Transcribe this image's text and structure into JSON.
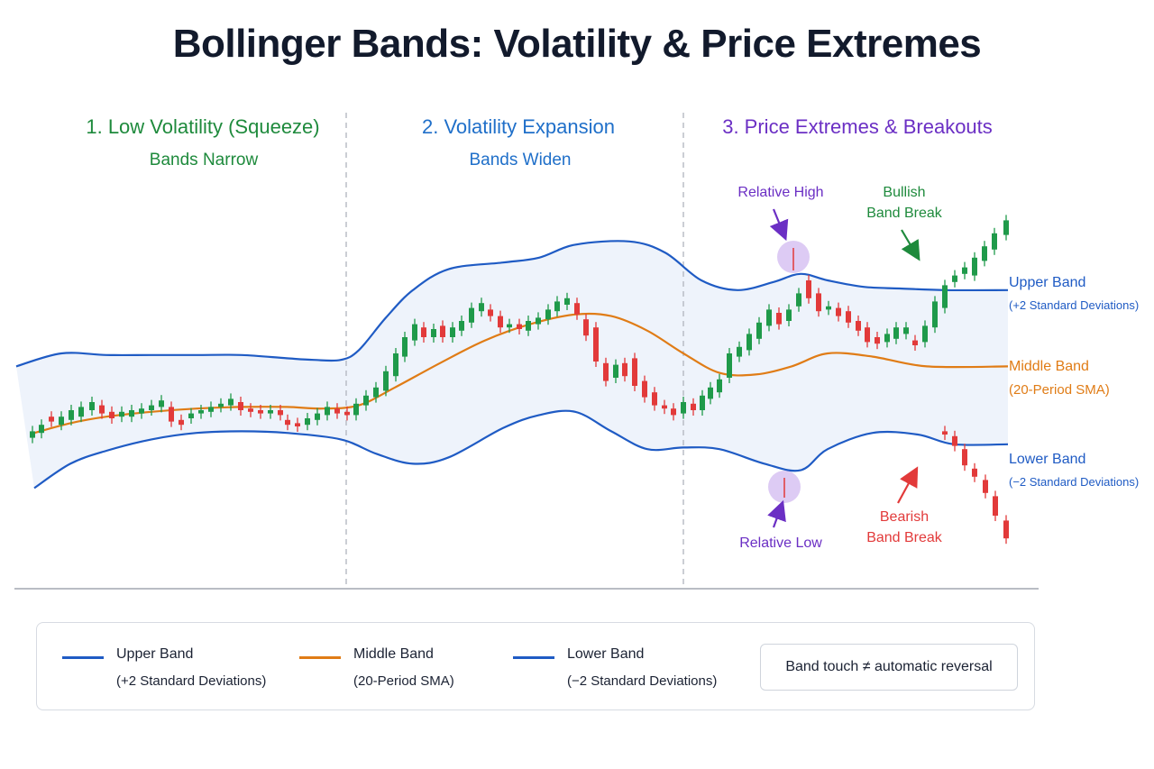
{
  "title": "Bollinger Bands: Volatility & Price Extremes",
  "colors": {
    "upper": "#1f5bc4",
    "middle": "#e07c16",
    "lower": "#1f5bc4",
    "bull": "#1f9a4a",
    "bear": "#e23a3a",
    "phase1": "#1e8a3c",
    "phase2": "#1f6fc9",
    "phase3": "#6b2fc4",
    "fill": "#eef3fb"
  },
  "phases": [
    {
      "title": "1. Low Volatility (Squeeze)",
      "subtitle": "Bands Narrow"
    },
    {
      "title": "2. Volatility Expansion",
      "subtitle": "Bands Widen"
    },
    {
      "title": "3. Price Extremes & Breakouts",
      "subtitle": ""
    }
  ],
  "annotations": {
    "relative_high": "Relative High",
    "relative_low": "Relative Low",
    "bullish_line1": "Bullish",
    "bullish_line2": "Band Break",
    "bearish_line1": "Bearish",
    "bearish_line2": "Band Break"
  },
  "band_labels": {
    "upper": {
      "name": "Upper Band",
      "desc": "(+2 Standard Deviations)"
    },
    "middle": {
      "name": "Middle Band",
      "desc": "(20-Period SMA)"
    },
    "lower": {
      "name": "Lower Band",
      "desc": "(−2 Standard Deviations)"
    }
  },
  "legend": [
    {
      "name": "Upper Band",
      "desc": "(+2 Standard Deviations)",
      "color": "#1f5bc4"
    },
    {
      "name": "Middle Band",
      "desc": "(20-Period SMA)",
      "color": "#e07c16"
    },
    {
      "name": "Lower Band",
      "desc": "(−2 Standard Deviations)",
      "color": "#1f5bc4"
    }
  ],
  "note": "Band touch ≠ automatic reversal",
  "chart_data": {
    "type": "candlestick",
    "series": [
      {
        "name": "Upper Band",
        "values": [
          {
            "x": 0,
            "y": 62
          },
          {
            "x": 50,
            "y": 70
          },
          {
            "x": 100,
            "y": 69
          },
          {
            "x": 150,
            "y": 69
          },
          {
            "x": 200,
            "y": 69
          },
          {
            "x": 250,
            "y": 69
          },
          {
            "x": 300,
            "y": 67
          },
          {
            "x": 330,
            "y": 66
          },
          {
            "x": 360,
            "y": 66
          },
          {
            "x": 380,
            "y": 72
          },
          {
            "x": 410,
            "y": 92
          },
          {
            "x": 440,
            "y": 109
          },
          {
            "x": 480,
            "y": 122
          },
          {
            "x": 540,
            "y": 126
          },
          {
            "x": 580,
            "y": 129
          },
          {
            "x": 620,
            "y": 137
          },
          {
            "x": 680,
            "y": 139
          },
          {
            "x": 720,
            "y": 132
          },
          {
            "x": 760,
            "y": 115
          },
          {
            "x": 800,
            "y": 109
          },
          {
            "x": 840,
            "y": 114
          },
          {
            "x": 870,
            "y": 119
          },
          {
            "x": 900,
            "y": 115
          },
          {
            "x": 940,
            "y": 111
          },
          {
            "x": 980,
            "y": 110
          },
          {
            "x": 1030,
            "y": 109
          },
          {
            "x": 1100,
            "y": 109
          }
        ]
      },
      {
        "name": "Middle Band",
        "values": [
          {
            "x": 20,
            "y": 21
          },
          {
            "x": 60,
            "y": 27
          },
          {
            "x": 100,
            "y": 31
          },
          {
            "x": 150,
            "y": 34
          },
          {
            "x": 200,
            "y": 36
          },
          {
            "x": 250,
            "y": 37
          },
          {
            "x": 300,
            "y": 37
          },
          {
            "x": 340,
            "y": 36
          },
          {
            "x": 380,
            "y": 38
          },
          {
            "x": 420,
            "y": 49
          },
          {
            "x": 470,
            "y": 64
          },
          {
            "x": 520,
            "y": 78
          },
          {
            "x": 570,
            "y": 88
          },
          {
            "x": 620,
            "y": 94
          },
          {
            "x": 660,
            "y": 93
          },
          {
            "x": 700,
            "y": 84
          },
          {
            "x": 740,
            "y": 70
          },
          {
            "x": 780,
            "y": 58
          },
          {
            "x": 820,
            "y": 57
          },
          {
            "x": 860,
            "y": 62
          },
          {
            "x": 900,
            "y": 70
          },
          {
            "x": 950,
            "y": 68
          },
          {
            "x": 1010,
            "y": 62
          },
          {
            "x": 1100,
            "y": 62
          }
        ]
      },
      {
        "name": "Lower Band",
        "values": [
          {
            "x": 20,
            "y": -13
          },
          {
            "x": 60,
            "y": 2
          },
          {
            "x": 100,
            "y": 10
          },
          {
            "x": 150,
            "y": 17
          },
          {
            "x": 200,
            "y": 21
          },
          {
            "x": 250,
            "y": 22
          },
          {
            "x": 300,
            "y": 21
          },
          {
            "x": 360,
            "y": 17
          },
          {
            "x": 400,
            "y": 8
          },
          {
            "x": 440,
            "y": 2
          },
          {
            "x": 480,
            "y": 6
          },
          {
            "x": 540,
            "y": 24
          },
          {
            "x": 580,
            "y": 32
          },
          {
            "x": 620,
            "y": 34
          },
          {
            "x": 660,
            "y": 22
          },
          {
            "x": 700,
            "y": 11
          },
          {
            "x": 740,
            "y": 12
          },
          {
            "x": 780,
            "y": 11
          },
          {
            "x": 830,
            "y": 2
          },
          {
            "x": 870,
            "y": -2
          },
          {
            "x": 900,
            "y": 11
          },
          {
            "x": 950,
            "y": 21
          },
          {
            "x": 1000,
            "y": 20
          },
          {
            "x": 1040,
            "y": 14
          },
          {
            "x": 1100,
            "y": 14
          }
        ]
      }
    ],
    "candles": [
      {
        "x": 18,
        "o": 18,
        "c": 22
      },
      {
        "x": 28,
        "o": 21,
        "c": 26
      },
      {
        "x": 39,
        "o": 31,
        "c": 28
      },
      {
        "x": 50,
        "o": 26,
        "c": 31
      },
      {
        "x": 61,
        "o": 29,
        "c": 35
      },
      {
        "x": 72,
        "o": 31,
        "c": 37
      },
      {
        "x": 84,
        "o": 35,
        "c": 40
      },
      {
        "x": 95,
        "o": 38,
        "c": 33
      },
      {
        "x": 106,
        "o": 34,
        "c": 30
      },
      {
        "x": 117,
        "o": 31,
        "c": 34
      },
      {
        "x": 128,
        "o": 31,
        "c": 35
      },
      {
        "x": 139,
        "o": 33,
        "c": 36
      },
      {
        "x": 150,
        "o": 35,
        "c": 38
      },
      {
        "x": 161,
        "o": 37,
        "c": 41
      },
      {
        "x": 172,
        "o": 37,
        "c": 28
      },
      {
        "x": 183,
        "o": 29,
        "c": 26
      },
      {
        "x": 194,
        "o": 30,
        "c": 33
      },
      {
        "x": 205,
        "o": 33,
        "c": 35
      },
      {
        "x": 216,
        "o": 34,
        "c": 37
      },
      {
        "x": 227,
        "o": 37,
        "c": 39
      },
      {
        "x": 238,
        "o": 38,
        "c": 42
      },
      {
        "x": 249,
        "o": 40,
        "c": 35
      },
      {
        "x": 260,
        "o": 36,
        "c": 34
      },
      {
        "x": 271,
        "o": 35,
        "c": 33
      },
      {
        "x": 282,
        "o": 33,
        "c": 35
      },
      {
        "x": 293,
        "o": 35,
        "c": 32
      },
      {
        "x": 301,
        "o": 29,
        "c": 26
      },
      {
        "x": 312,
        "o": 27,
        "c": 25
      },
      {
        "x": 323,
        "o": 26,
        "c": 30
      },
      {
        "x": 334,
        "o": 29,
        "c": 33
      },
      {
        "x": 345,
        "o": 32,
        "c": 37
      },
      {
        "x": 356,
        "o": 36,
        "c": 33
      },
      {
        "x": 367,
        "o": 34,
        "c": 32
      },
      {
        "x": 377,
        "o": 32,
        "c": 39
      },
      {
        "x": 388,
        "o": 38,
        "c": 44
      },
      {
        "x": 399,
        "o": 43,
        "c": 49
      },
      {
        "x": 410,
        "o": 47,
        "c": 59
      },
      {
        "x": 421,
        "o": 56,
        "c": 70
      },
      {
        "x": 431,
        "o": 68,
        "c": 80
      },
      {
        "x": 442,
        "o": 78,
        "c": 88
      },
      {
        "x": 452,
        "o": 86,
        "c": 80
      },
      {
        "x": 463,
        "o": 80,
        "c": 85
      },
      {
        "x": 473,
        "o": 87,
        "c": 80
      },
      {
        "x": 484,
        "o": 80,
        "c": 86
      },
      {
        "x": 494,
        "o": 84,
        "c": 90
      },
      {
        "x": 505,
        "o": 89,
        "c": 98
      },
      {
        "x": 516,
        "o": 96,
        "c": 101
      },
      {
        "x": 526,
        "o": 97,
        "c": 93
      },
      {
        "x": 537,
        "o": 93,
        "c": 86
      },
      {
        "x": 547,
        "o": 86,
        "c": 88
      },
      {
        "x": 558,
        "o": 88,
        "c": 85
      },
      {
        "x": 568,
        "o": 84,
        "c": 90
      },
      {
        "x": 579,
        "o": 88,
        "c": 92
      },
      {
        "x": 590,
        "o": 91,
        "c": 97
      },
      {
        "x": 600,
        "o": 96,
        "c": 102
      },
      {
        "x": 611,
        "o": 100,
        "c": 104
      },
      {
        "x": 622,
        "o": 101,
        "c": 94
      },
      {
        "x": 632,
        "o": 91,
        "c": 81
      },
      {
        "x": 643,
        "o": 86,
        "c": 65
      },
      {
        "x": 654,
        "o": 64,
        "c": 53
      },
      {
        "x": 665,
        "o": 55,
        "c": 63
      },
      {
        "x": 675,
        "o": 64,
        "c": 56
      },
      {
        "x": 686,
        "o": 67,
        "c": 50
      },
      {
        "x": 697,
        "o": 53,
        "c": 43
      },
      {
        "x": 708,
        "o": 46,
        "c": 38
      },
      {
        "x": 719,
        "o": 38,
        "c": 36
      },
      {
        "x": 729,
        "o": 36,
        "c": 32
      },
      {
        "x": 740,
        "o": 33,
        "c": 40
      },
      {
        "x": 751,
        "o": 39,
        "c": 35
      },
      {
        "x": 761,
        "o": 35,
        "c": 44
      },
      {
        "x": 770,
        "o": 42,
        "c": 49
      },
      {
        "x": 780,
        "o": 46,
        "c": 54
      },
      {
        "x": 791,
        "o": 55,
        "c": 70
      },
      {
        "x": 802,
        "o": 68,
        "c": 74
      },
      {
        "x": 813,
        "o": 72,
        "c": 82
      },
      {
        "x": 824,
        "o": 79,
        "c": 89
      },
      {
        "x": 835,
        "o": 87,
        "c": 97
      },
      {
        "x": 846,
        "o": 95,
        "c": 88
      },
      {
        "x": 857,
        "o": 90,
        "c": 97
      },
      {
        "x": 868,
        "o": 99,
        "c": 107
      },
      {
        "x": 879,
        "o": 115,
        "c": 104
      },
      {
        "x": 890,
        "o": 107,
        "c": 96
      },
      {
        "x": 901,
        "o": 97,
        "c": 99
      },
      {
        "x": 912,
        "o": 98,
        "c": 93
      },
      {
        "x": 923,
        "o": 96,
        "c": 89
      },
      {
        "x": 934,
        "o": 90,
        "c": 84
      },
      {
        "x": 944,
        "o": 86,
        "c": 77
      },
      {
        "x": 955,
        "o": 80,
        "c": 76
      },
      {
        "x": 966,
        "o": 77,
        "c": 82
      },
      {
        "x": 976,
        "o": 79,
        "c": 86
      },
      {
        "x": 987,
        "o": 82,
        "c": 86
      },
      {
        "x": 997,
        "o": 78,
        "c": 75
      },
      {
        "x": 1008,
        "o": 77,
        "c": 87
      },
      {
        "x": 1019,
        "o": 86,
        "c": 102
      },
      {
        "x": 1030,
        "o": 98,
        "c": 112
      },
      {
        "x": 1041,
        "o": 114,
        "c": 118
      },
      {
        "x": 1052,
        "o": 119,
        "c": 123
      },
      {
        "x": 1063,
        "o": 118,
        "c": 129
      },
      {
        "x": 1074,
        "o": 127,
        "c": 136
      },
      {
        "x": 1085,
        "o": 134,
        "c": 144
      },
      {
        "x": 1098,
        "o": 143,
        "c": 152
      },
      {
        "x": 1030,
        "o": 22,
        "c": 20
      },
      {
        "x": 1041,
        "o": 19,
        "c": 13
      },
      {
        "x": 1052,
        "o": 11,
        "c": 1
      },
      {
        "x": 1063,
        "o": -1,
        "c": -6
      },
      {
        "x": 1075,
        "o": -8,
        "c": -16
      },
      {
        "x": 1086,
        "o": -18,
        "c": -30
      },
      {
        "x": 1098,
        "o": -33,
        "c": -44
      }
    ],
    "xlabel": "",
    "ylabel": "",
    "grid": false,
    "legend_position": "bottom"
  }
}
